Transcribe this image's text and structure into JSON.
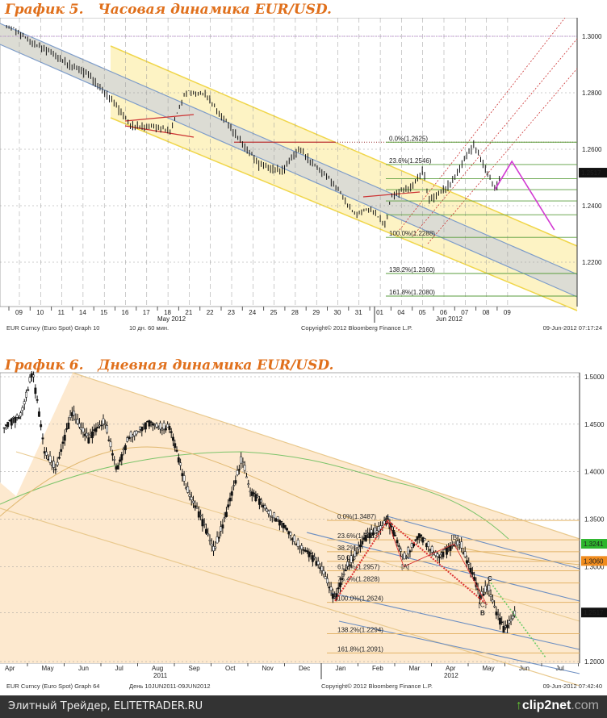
{
  "chart_data": [
    {
      "type": "candlestick",
      "title": "График 5.   Часовая динамика EUR/USD.",
      "x_ticks": [
        "09",
        "10",
        "11",
        "14",
        "15",
        "16",
        "17",
        "18",
        "21",
        "22",
        "23",
        "24",
        "25",
        "28",
        "29",
        "30",
        "31",
        "01",
        "04",
        "05",
        "06",
        "07",
        "08",
        "09"
      ],
      "month_labels": [
        "May 2012",
        "Jun 2012"
      ],
      "ylim": [
        1.202,
        1.307
      ],
      "y_ticks": [
        "1.3000",
        "1.2800",
        "1.2600",
        "1.2400",
        "1.2200"
      ],
      "y_tick_values": [
        1.3,
        1.28,
        1.26,
        1.24,
        1.22
      ],
      "last_price": "1.2517",
      "last_value": 1.2517,
      "price_path": [
        [
          -0.6,
          1.304
        ],
        [
          1.4,
          1.2943
        ],
        [
          3.3,
          1.2857
        ],
        [
          4.2,
          1.2786
        ],
        [
          5.2,
          1.2686
        ],
        [
          7.1,
          1.2671
        ],
        [
          7.8,
          1.28
        ],
        [
          8.8,
          1.28
        ],
        [
          9.35,
          1.2729
        ],
        [
          10.3,
          1.2643
        ],
        [
          11.25,
          1.2543
        ],
        [
          12.4,
          1.2523
        ],
        [
          13.2,
          1.26
        ],
        [
          14.1,
          1.2529
        ],
        [
          15.06,
          1.2457
        ],
        [
          15.8,
          1.2371
        ],
        [
          16.6,
          1.2391
        ],
        [
          17.26,
          1.2334
        ],
        [
          17.5,
          1.243
        ],
        [
          18.5,
          1.247
        ],
        [
          19.05,
          1.2529
        ],
        [
          19.25,
          1.2414
        ],
        [
          19.6,
          1.2429
        ],
        [
          20.4,
          1.2486
        ],
        [
          20.95,
          1.2557
        ],
        [
          21.4,
          1.2614
        ],
        [
          21.9,
          1.2543
        ],
        [
          22.4,
          1.2457
        ],
        [
          22.7,
          1.2506
        ]
      ],
      "fib": [
        {
          "label": "0.0%(1.2625)",
          "value": 1.2625
        },
        {
          "label": "23.6%(1.2546)",
          "value": 1.2546
        },
        {
          "label": "",
          "value": 1.2496
        },
        {
          "label": "",
          "value": 1.2457
        },
        {
          "label": "",
          "value": 1.2417
        },
        {
          "label": "",
          "value": 1.2368
        },
        {
          "label": "100.0%(1.2288)",
          "value": 1.2288
        },
        {
          "label": "138.2%(1.2160)",
          "value": 1.216
        },
        {
          "label": "161.8%(1.2080)",
          "value": 1.208
        }
      ],
      "projection": [
        [
          22.4,
          1.2457
        ],
        [
          23.2,
          1.2557
        ],
        [
          25.2,
          1.2314
        ]
      ],
      "footer": {
        "left": "EUR Curncy (Euro Spot) Graph 10",
        "period": "10 дн. 60 мин.",
        "copyright": "Copyright© 2012 Bloomberg Finance L.P.",
        "timestamp": "09-Jun-2012 07:17:24"
      }
    },
    {
      "type": "candlestick",
      "title": "График 6.   Дневная динамика EUR/USD.",
      "x_ticks": [
        "Apr",
        "May",
        "Jun",
        "Jul",
        "Aug",
        "Sep",
        "Oct",
        "Nov",
        "Dec",
        "Jan",
        "Feb",
        "Mar",
        "Apr",
        "May",
        "Jun",
        "Jul"
      ],
      "year_labels": [
        "2011",
        "2012"
      ],
      "ylim": [
        1.198,
        1.504
      ],
      "y_ticks": [
        "1.5000",
        "1.4500",
        "1.4000",
        "1.3500",
        "1.3000",
        "1.2517",
        "1.2000"
      ],
      "y_tick_values": [
        1.5,
        1.45,
        1.4,
        1.35,
        1.3,
        1.2517,
        1.2
      ],
      "last_price": "1.2517",
      "last_value": 1.2517,
      "markers": [
        {
          "label": "1.3241",
          "value": 1.3241,
          "color": "#2db52d"
        },
        {
          "label": "1.3060",
          "value": 1.306,
          "color": "#f08c1e"
        }
      ],
      "price_path": [
        [
          -0.15,
          1.4465
        ],
        [
          0.29,
          1.4592
        ],
        [
          0.62,
          1.506
        ],
        [
          0.95,
          1.421
        ],
        [
          1.27,
          1.404
        ],
        [
          1.71,
          1.4635
        ],
        [
          2.15,
          1.4337
        ],
        [
          2.59,
          1.455
        ],
        [
          2.92,
          1.3997
        ],
        [
          3.25,
          1.438
        ],
        [
          3.8,
          1.4507
        ],
        [
          4.35,
          1.4465
        ],
        [
          4.79,
          1.387
        ],
        [
          5.56,
          1.319
        ],
        [
          5.89,
          1.353
        ],
        [
          6.33,
          1.4167
        ],
        [
          6.55,
          1.3785
        ],
        [
          7.21,
          1.353
        ],
        [
          7.98,
          1.319
        ],
        [
          8.53,
          1.2978
        ],
        [
          8.86,
          1.2638
        ],
        [
          9.19,
          1.302
        ],
        [
          9.74,
          1.3318
        ],
        [
          10.29,
          1.3487
        ],
        [
          10.73,
          1.3105
        ],
        [
          11.16,
          1.3318
        ],
        [
          11.71,
          1.3105
        ],
        [
          12.26,
          1.3275
        ],
        [
          12.81,
          1.268
        ],
        [
          13.03,
          1.2808
        ],
        [
          13.25,
          1.251
        ],
        [
          13.47,
          1.2324
        ],
        [
          13.8,
          1.2553
        ]
      ],
      "fib": [
        {
          "label": "0.0%(1.3487)",
          "value": 1.3487
        },
        {
          "label": "23.6%(1.3283)",
          "value": 1.3283
        },
        {
          "label": "38.2%",
          "value": 1.3157
        },
        {
          "label": "50.0%",
          "value": 1.3056
        },
        {
          "label": "61.8%(1.2957)",
          "value": 1.2957
        },
        {
          "label": "76.4%(1.2828)",
          "value": 1.2828
        },
        {
          "label": "100.0%(1.2624)",
          "value": 1.2624
        },
        {
          "label": "138.2%(1.2294)",
          "value": 1.2294
        },
        {
          "label": "161.8%(1.2091)",
          "value": 1.2091
        }
      ],
      "wave_labels": [
        {
          "label": "A",
          "m": 10.29,
          "value": 1.3487,
          "big": true
        },
        {
          "label": "[A]",
          "m": 10.75,
          "value": 1.298,
          "big": false
        },
        {
          "label": "[B]",
          "m": 12.1,
          "value": 1.3285,
          "big": false
        },
        {
          "label": "C",
          "m": 13.1,
          "value": 1.285,
          "big": true
        },
        {
          "label": "[C]",
          "m": 12.85,
          "value": 1.2575,
          "big": false
        },
        {
          "label": "B",
          "m": 12.9,
          "value": 1.249,
          "big": true
        }
      ],
      "footer": {
        "left": "EUR Curncy (Euro Spot) Graph 64",
        "period": "День 10JUN2011-09JUN2012",
        "copyright": "Copyright© 2012 Bloomberg Finance L.P.",
        "timestamp": "09-Jun-2012 07:42:40"
      }
    }
  ],
  "banner": {
    "left": "Элитный Трейдер, ELITETRADER.RU",
    "brand_main": "clip2net",
    "brand_tld": ".com"
  }
}
